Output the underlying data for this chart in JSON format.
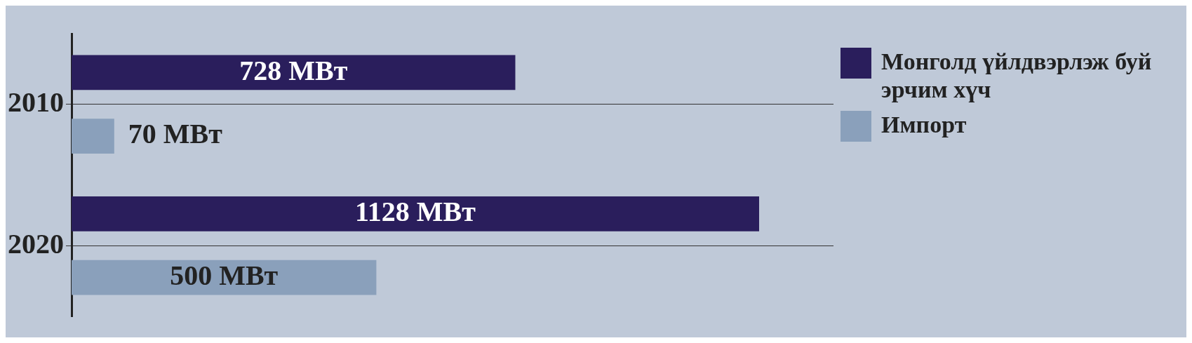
{
  "chart_data": {
    "type": "bar",
    "orientation": "horizontal",
    "categories": [
      "2010",
      "2020"
    ],
    "series": [
      {
        "name": "Монголд үйлдвэрлэж буй эрчим хүч",
        "color": "#2a1e5c",
        "values": [
          728,
          1128
        ],
        "value_labels": [
          "728 МВт",
          "1128 МВт"
        ]
      },
      {
        "name": "Импорт",
        "color": "#8aa0bb",
        "values": [
          70,
          500
        ],
        "value_labels": [
          "70 МВт",
          "500 МВт"
        ]
      }
    ],
    "xlim": [
      0,
      1250
    ],
    "tick_labels": "y",
    "grid": "y",
    "legend": "right"
  }
}
